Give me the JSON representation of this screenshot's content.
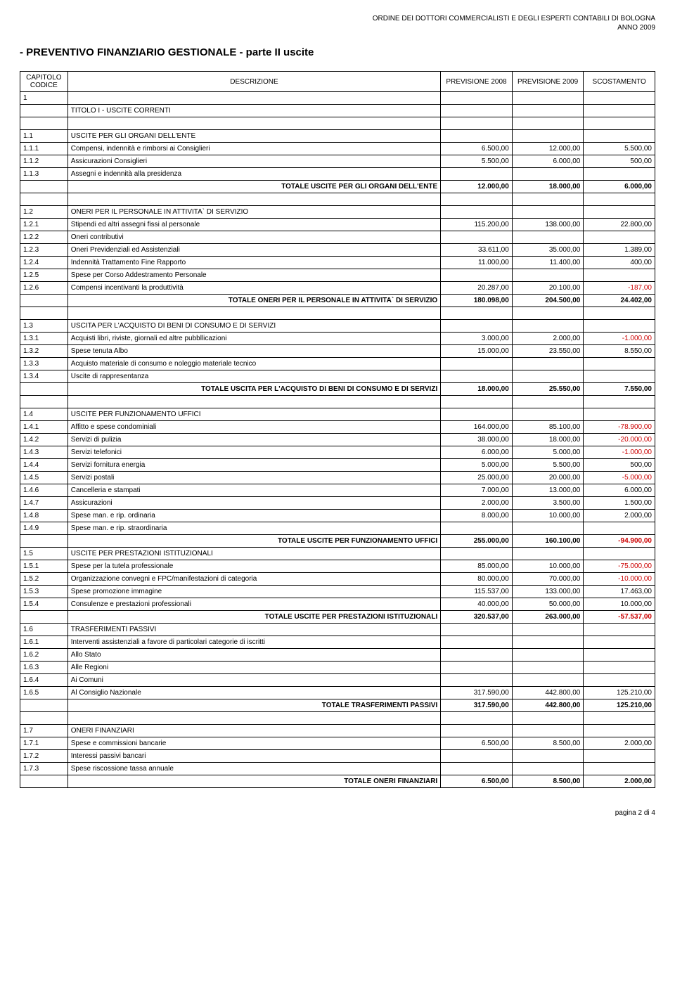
{
  "header": {
    "org": "ORDINE DEI DOTTORI COMMERCIALISTI E DEGLI ESPERTI CONTABILI DI BOLOGNA",
    "year": "ANNO 2009"
  },
  "title": "- PREVENTIVO  FINANZIARIO GESTIONALE - parte  II uscite",
  "columns": {
    "capitolo": "CAPITOLO CODICE",
    "descrizione": "DESCRIZIONE",
    "prev2008": "PREVISIONE 2008",
    "prev2009": "PREVISIONE 2009",
    "scost": "SCOSTAMENTO"
  },
  "sections": [
    {
      "preRows": [
        {
          "code": "1",
          "desc": "",
          "v08": "",
          "v09": "",
          "sc": ""
        },
        {
          "code": "",
          "desc": "TITOLO I - USCITE CORRENTI",
          "v08": "",
          "v09": "",
          "sc": ""
        }
      ],
      "rows": [
        {
          "code": "1.1",
          "desc": "USCITE PER GLI ORGANI DELL'ENTE",
          "v08": "",
          "v09": "",
          "sc": ""
        },
        {
          "code": "1.1.1",
          "desc": "Compensi, indennità e rimborsi ai Consiglieri",
          "v08": "6.500,00",
          "v09": "12.000,00",
          "sc": "5.500,00"
        },
        {
          "code": "1.1.2",
          "desc": "Assicurazioni Consiglieri",
          "v08": "5.500,00",
          "v09": "6.000,00",
          "sc": "500,00"
        },
        {
          "code": "1.1.3",
          "desc": "Assegni e indennità alla presidenza",
          "v08": "",
          "v09": "",
          "sc": ""
        }
      ],
      "total": {
        "desc": "TOTALE USCITE PER GLI ORGANI DELL'ENTE",
        "v08": "12.000,00",
        "v09": "18.000,00",
        "sc": "6.000,00"
      }
    },
    {
      "rows": [
        {
          "code": "1.2",
          "desc": "ONERI PER IL PERSONALE IN ATTIVITA` DI SERVIZIO",
          "v08": "",
          "v09": "",
          "sc": ""
        },
        {
          "code": "1.2.1",
          "desc": "Stipendi ed altri assegni fissi al personale",
          "v08": "115.200,00",
          "v09": "138.000,00",
          "sc": "22.800,00"
        },
        {
          "code": "1.2.2",
          "desc": "Oneri contributivi",
          "v08": "",
          "v09": "",
          "sc": ""
        },
        {
          "code": "1.2.3",
          "desc": "Oneri Previdenziali ed Assistenziali",
          "v08": "33.611,00",
          "v09": "35.000,00",
          "sc": "1.389,00"
        },
        {
          "code": "1.2.4",
          "desc": "Indennità Trattamento Fine Rapporto",
          "v08": "11.000,00",
          "v09": "11.400,00",
          "sc": "400,00"
        },
        {
          "code": "1.2.5",
          "desc": "Spese per Corso Addestramento Personale",
          "v08": "",
          "v09": "",
          "sc": ""
        },
        {
          "code": "1.2.6",
          "desc": "Compensi incentivanti la produttività",
          "v08": "20.287,00",
          "v09": "20.100,00",
          "sc": "-187,00",
          "neg": true
        }
      ],
      "total": {
        "desc": "TOTALE ONERI PER IL PERSONALE IN ATTIVITA` DI SERVIZIO",
        "v08": "180.098,00",
        "v09": "204.500,00",
        "sc": "24.402,00"
      }
    },
    {
      "rows": [
        {
          "code": "1.3",
          "desc": "USCITA PER L'ACQUISTO DI BENI DI CONSUMO E DI SERVIZI",
          "v08": "",
          "v09": "",
          "sc": ""
        },
        {
          "code": "1.3.1",
          "desc": "Acquisti libri, riviste, giornali ed altre pubbllicazioni",
          "v08": "3.000,00",
          "v09": "2.000,00",
          "sc": "-1.000,00",
          "neg": true
        },
        {
          "code": "1.3.2",
          "desc": "Spese tenuta Albo",
          "v08": "15.000,00",
          "v09": "23.550,00",
          "sc": "8.550,00"
        },
        {
          "code": "1.3.3",
          "desc": "Acquisto materiale di consumo e noleggio materiale tecnico",
          "v08": "",
          "v09": "",
          "sc": ""
        },
        {
          "code": "1.3.4",
          "desc": "Uscite di rappresentanza",
          "v08": "",
          "v09": "",
          "sc": ""
        }
      ],
      "total": {
        "desc": "TOTALE USCITA PER L'ACQUISTO DI BENI DI CONSUMO E DI SERVIZI",
        "v08": "18.000,00",
        "v09": "25.550,00",
        "sc": "7.550,00"
      }
    },
    {
      "rows": [
        {
          "code": "1.4",
          "desc": "USCITE PER FUNZIONAMENTO UFFICI",
          "v08": "",
          "v09": "",
          "sc": ""
        },
        {
          "code": "1.4.1",
          "desc": "Affitto e spese condominiali",
          "v08": "164.000,00",
          "v09": "85.100,00",
          "sc": "-78.900,00",
          "neg": true
        },
        {
          "code": "1.4.2",
          "desc": "Servizi di pulizia",
          "v08": "38.000,00",
          "v09": "18.000,00",
          "sc": "-20.000,00",
          "neg": true
        },
        {
          "code": "1.4.3",
          "desc": "Servizi telefonici",
          "v08": "6.000,00",
          "v09": "5.000,00",
          "sc": "-1.000,00",
          "neg": true
        },
        {
          "code": "1.4.4",
          "desc": "Servizi fornitura energia",
          "v08": "5.000,00",
          "v09": "5.500,00",
          "sc": "500,00"
        },
        {
          "code": "1.4.5",
          "desc": "Servizi postali",
          "v08": "25.000,00",
          "v09": "20.000,00",
          "sc": "-5.000,00",
          "neg": true
        },
        {
          "code": "1.4.6",
          "desc": "Cancelleria e stampati",
          "v08": "7.000,00",
          "v09": "13.000,00",
          "sc": "6.000,00"
        },
        {
          "code": "1.4.7",
          "desc": "Assicurazioni",
          "v08": "2.000,00",
          "v09": "3.500,00",
          "sc": "1.500,00"
        },
        {
          "code": "1.4.8",
          "desc": "Spese man. e rip. ordinaria",
          "v08": "8.000,00",
          "v09": "10.000,00",
          "sc": "2.000,00"
        },
        {
          "code": "1.4.9",
          "desc": "Spese man. e rip. straordinaria",
          "v08": "",
          "v09": "",
          "sc": ""
        }
      ],
      "total": {
        "desc": "TOTALE USCITE PER FUNZIONAMENTO UFFICI",
        "v08": "255.000,00",
        "v09": "160.100,00",
        "sc": "-94.900,00",
        "neg": true
      }
    },
    {
      "noGapBefore": true,
      "rows": [
        {
          "code": "1.5",
          "desc": "USCITE PER PRESTAZIONI ISTITUZIONALI",
          "v08": "",
          "v09": "",
          "sc": ""
        },
        {
          "code": "1.5.1",
          "desc": "Spese per la tutela professionale",
          "v08": "85.000,00",
          "v09": "10.000,00",
          "sc": "-75.000,00",
          "neg": true
        },
        {
          "code": "1.5.2",
          "desc": "Organizzazione convegni e FPC/manifestazioni di categoria",
          "v08": "80.000,00",
          "v09": "70.000,00",
          "sc": "-10.000,00",
          "neg": true
        },
        {
          "code": "1.5.3",
          "desc": "Spese promozione immagine",
          "v08": "115.537,00",
          "v09": "133.000,00",
          "sc": "17.463,00"
        },
        {
          "code": "1.5.4",
          "desc": "Consulenze e prestazioni professionali",
          "v08": "40.000,00",
          "v09": "50.000,00",
          "sc": "10.000,00"
        }
      ],
      "total": {
        "desc": "TOTALE USCITE PER PRESTAZIONI ISTITUZIONALI",
        "v08": "320.537,00",
        "v09": "263.000,00",
        "sc": "-57.537,00",
        "neg": true
      }
    },
    {
      "noGapBefore": true,
      "rows": [
        {
          "code": "1.6",
          "desc": "TRASFERIMENTI PASSIVI",
          "v08": "",
          "v09": "",
          "sc": ""
        },
        {
          "code": "1.6.1",
          "desc": "Interventi assistenziali a favore di particolari categorie di iscritti",
          "v08": "",
          "v09": "",
          "sc": ""
        },
        {
          "code": "1.6.2",
          "desc": "Allo Stato",
          "v08": "",
          "v09": "",
          "sc": ""
        },
        {
          "code": "1.6.3",
          "desc": "Alle Regioni",
          "v08": "",
          "v09": "",
          "sc": ""
        },
        {
          "code": "1.6.4",
          "desc": "Ai Comuni",
          "v08": "",
          "v09": "",
          "sc": ""
        },
        {
          "code": "1.6.5",
          "desc": "Al Consiglio Nazionale",
          "v08": "317.590,00",
          "v09": "442.800,00",
          "sc": "125.210,00"
        }
      ],
      "total": {
        "desc": "TOTALE TRASFERIMENTI PASSIVI",
        "v08": "317.590,00",
        "v09": "442.800,00",
        "sc": "125.210,00"
      }
    },
    {
      "rows": [
        {
          "code": "1.7",
          "desc": "ONERI FINANZIARI",
          "v08": "",
          "v09": "",
          "sc": ""
        },
        {
          "code": "1.7.1",
          "desc": "Spese e commissioni bancarie",
          "v08": "6.500,00",
          "v09": "8.500,00",
          "sc": "2.000,00"
        },
        {
          "code": "1.7.2",
          "desc": "Interessi passivi bancari",
          "v08": "",
          "v09": "",
          "sc": ""
        },
        {
          "code": "1.7.3",
          "desc": "Spese riscossione tassa annuale",
          "v08": "",
          "v09": "",
          "sc": ""
        }
      ],
      "total": {
        "desc": "TOTALE ONERI FINANZIARI",
        "v08": "6.500,00",
        "v09": "8.500,00",
        "sc": "2.000,00"
      }
    }
  ],
  "footer": "pagina 2 di 4"
}
